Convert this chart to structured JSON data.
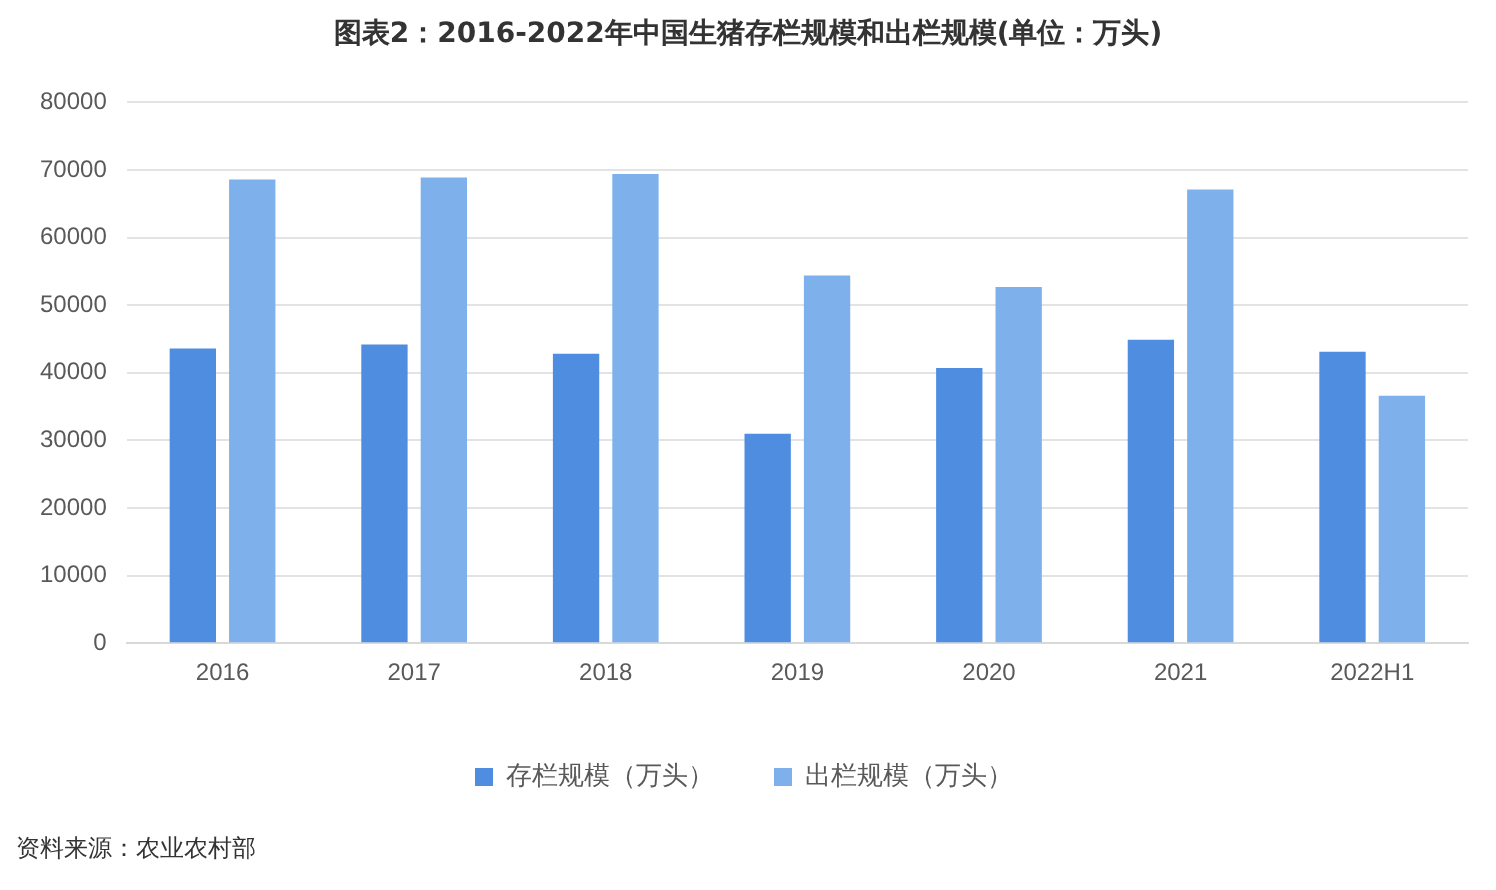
{
  "chart_data": {
    "type": "bar",
    "title": "图表2：2016-2022年中国生猪存栏规模和出栏规模(单位：万头)",
    "categories": [
      "2016",
      "2017",
      "2018",
      "2019",
      "2020",
      "2021",
      "2022H1"
    ],
    "series": [
      {
        "name": "存栏规模（万头）",
        "color": "#4e8de0",
        "values": [
          43600,
          44200,
          42800,
          31000,
          40700,
          44900,
          43100
        ]
      },
      {
        "name": "出栏规模（万头）",
        "color": "#7eb0ec",
        "values": [
          68600,
          68900,
          69400,
          54400,
          52700,
          67100,
          36600
        ]
      }
    ],
    "ylim": [
      0,
      80000
    ],
    "yticks": [
      0,
      10000,
      20000,
      30000,
      40000,
      50000,
      60000,
      70000,
      80000
    ],
    "grid": "y",
    "legend": "bottom",
    "annotations": [
      "资料来源：农业农村部"
    ]
  }
}
